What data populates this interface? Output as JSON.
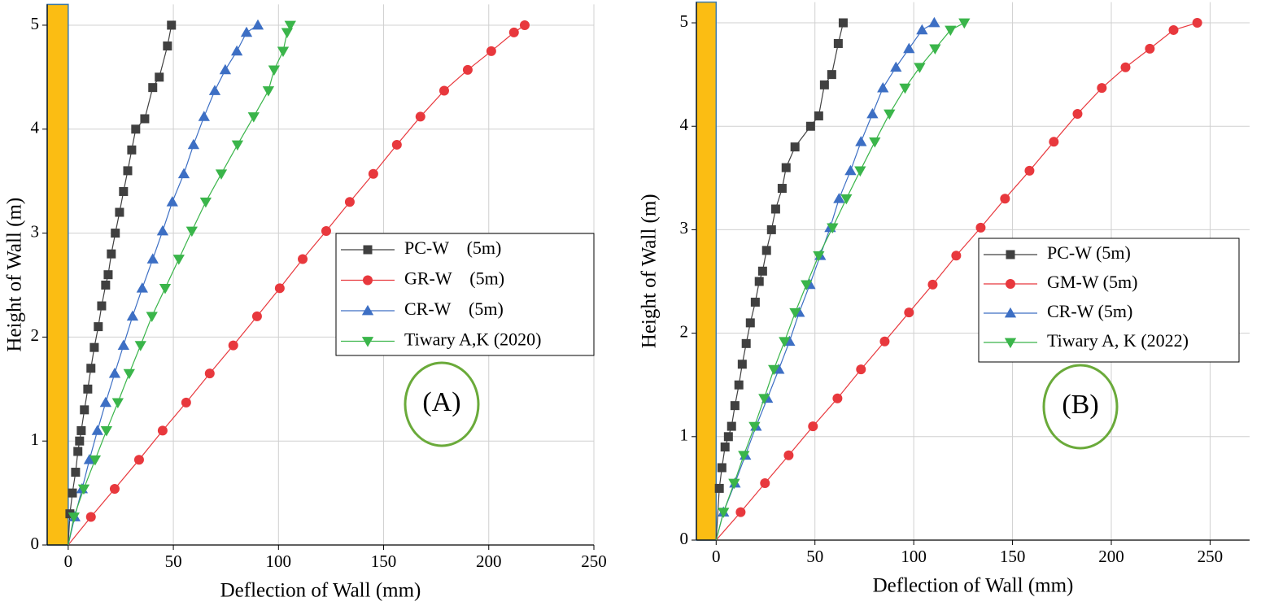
{
  "chart_data": [
    {
      "type": "line",
      "xlabel": "Deflection of Wall (mm)",
      "ylabel": "Height of Wall (m)",
      "annotation": "(A)",
      "xlim": [
        -10,
        250
      ],
      "ylim": [
        0,
        5.2
      ],
      "xticks": [
        0,
        50,
        100,
        150,
        200,
        250
      ],
      "yticks": [
        0,
        1,
        2,
        3,
        4,
        5
      ],
      "grid": true,
      "legend": "right",
      "series": [
        {
          "name": "PC-W    (5m)",
          "color": "#404040",
          "marker": "square",
          "x": [
            0,
            0.8,
            2,
            3.5,
            4.6,
            5.4,
            6.2,
            7.7,
            9.3,
            10.8,
            12.4,
            14.3,
            15.9,
            17.8,
            19,
            20.5,
            22.4,
            24.4,
            26.3,
            28.3,
            30.2,
            32.1,
            36.4,
            40.2,
            43.3,
            47.2,
            49.1
          ],
          "values": [
            0,
            0.3,
            0.5,
            0.7,
            0.9,
            1.0,
            1.1,
            1.3,
            1.5,
            1.7,
            1.9,
            2.1,
            2.3,
            2.5,
            2.6,
            2.8,
            3.0,
            3.2,
            3.4,
            3.6,
            3.8,
            4.0,
            4.1,
            4.4,
            4.5,
            4.8,
            5.0
          ]
        },
        {
          "name": "GR-W    (5m)",
          "color": "#e8383d",
          "marker": "circle",
          "x": [
            0,
            10.8,
            22.1,
            33.7,
            44.9,
            56.1,
            67.3,
            78.5,
            89.8,
            100.6,
            111.5,
            122.7,
            133.9,
            145.1,
            156.3,
            167.5,
            178.8,
            190,
            201.2,
            212,
            217.1
          ],
          "values": [
            0,
            0.27,
            0.54,
            0.82,
            1.1,
            1.37,
            1.65,
            1.92,
            2.2,
            2.47,
            2.75,
            3.02,
            3.3,
            3.57,
            3.85,
            4.12,
            4.37,
            4.57,
            4.75,
            4.93,
            5.0
          ]
        },
        {
          "name": "CR-W    (5m)",
          "color": "#3d6fc4",
          "marker": "triangle-up",
          "x": [
            0,
            3.1,
            6.6,
            10.1,
            13.9,
            17.8,
            22.1,
            26.3,
            30.6,
            35.2,
            40.2,
            44.9,
            49.5,
            55,
            59.6,
            64.6,
            69.7,
            74.7,
            80.2,
            84.8,
            90.2
          ],
          "values": [
            0,
            0.27,
            0.54,
            0.82,
            1.1,
            1.37,
            1.65,
            1.92,
            2.2,
            2.47,
            2.75,
            3.02,
            3.3,
            3.57,
            3.85,
            4.12,
            4.37,
            4.57,
            4.75,
            4.93,
            5.0
          ]
        },
        {
          "name": "Tiwary A,K (2020)",
          "color": "#3ab54a",
          "marker": "triangle-down",
          "x": [
            0,
            2.7,
            7.4,
            12.8,
            18.2,
            23.6,
            29,
            34.4,
            39.8,
            46.1,
            52.6,
            58.8,
            65.4,
            72.8,
            80.5,
            88.2,
            95.2,
            97.9,
            102.2,
            104.1,
            105.6
          ],
          "values": [
            0,
            0.27,
            0.54,
            0.82,
            1.1,
            1.37,
            1.65,
            1.92,
            2.2,
            2.47,
            2.75,
            3.02,
            3.3,
            3.57,
            3.85,
            4.12,
            4.37,
            4.57,
            4.75,
            4.93,
            5.0
          ]
        }
      ]
    },
    {
      "type": "line",
      "xlabel": "Deflection of Wall (mm)",
      "ylabel": "Height of Wall (m)",
      "annotation": "(B)",
      "xlim": [
        -10,
        270
      ],
      "ylim": [
        0,
        5.2
      ],
      "xticks": [
        0,
        50,
        100,
        150,
        200,
        250
      ],
      "yticks": [
        0,
        1,
        2,
        3,
        4,
        5
      ],
      "grid": true,
      "legend": "right",
      "series": [
        {
          "name": "PC-W (5m)",
          "color": "#404040",
          "marker": "square",
          "x": [
            0,
            1.6,
            2.9,
            4.5,
            6.2,
            7.8,
            9.5,
            11.5,
            13.2,
            15.2,
            17.3,
            19.8,
            21.8,
            23.5,
            25.5,
            28,
            30.1,
            33.4,
            35.4,
            39.9,
            47.8,
            51.9,
            54.8,
            58.5,
            61.8,
            64.3
          ],
          "values": [
            0,
            0.5,
            0.7,
            0.9,
            1.0,
            1.1,
            1.3,
            1.5,
            1.7,
            1.9,
            2.1,
            2.3,
            2.5,
            2.6,
            2.8,
            3.0,
            3.2,
            3.4,
            3.6,
            3.8,
            4.0,
            4.1,
            4.4,
            4.5,
            4.8,
            5.0
          ]
        },
        {
          "name": "GM-W (5m)",
          "color": "#e8383d",
          "marker": "circle",
          "x": [
            0,
            12.4,
            24.7,
            36.7,
            49,
            61.4,
            73.3,
            85.3,
            97.6,
            109.6,
            121.5,
            133.9,
            146.2,
            158.6,
            170.9,
            182.9,
            195.2,
            207.2,
            219.5,
            231.5,
            243.5
          ],
          "values": [
            0,
            0.27,
            0.55,
            0.82,
            1.1,
            1.37,
            1.65,
            1.92,
            2.2,
            2.47,
            2.75,
            3.02,
            3.3,
            3.57,
            3.85,
            4.12,
            4.37,
            4.57,
            4.75,
            4.93,
            5.0
          ]
        },
        {
          "name": "CR-W (5m)",
          "color": "#3d6fc4",
          "marker": "triangle-up",
          "x": [
            0,
            3.7,
            9.5,
            14.8,
            20.2,
            25.9,
            31.7,
            37.1,
            42,
            47.4,
            52.7,
            57.7,
            62.2,
            68,
            73.3,
            79.1,
            84.4,
            91,
            97.6,
            104.2,
            110.4
          ],
          "values": [
            0,
            0.27,
            0.55,
            0.82,
            1.1,
            1.37,
            1.65,
            1.92,
            2.2,
            2.47,
            2.75,
            3.02,
            3.3,
            3.57,
            3.85,
            4.12,
            4.37,
            4.57,
            4.75,
            4.93,
            5.0
          ]
        },
        {
          "name": "Tiwary A, K (2022)",
          "color": "#3ab54a",
          "marker": "triangle-down",
          "x": [
            0,
            3.7,
            9.1,
            14,
            19.4,
            24.3,
            29.2,
            34.6,
            40,
            45.7,
            51.9,
            58.9,
            65.9,
            72.9,
            80.3,
            87.7,
            95.6,
            103,
            110.8,
            118.6,
            125.6
          ],
          "values": [
            0,
            0.27,
            0.55,
            0.82,
            1.1,
            1.37,
            1.65,
            1.92,
            2.2,
            2.47,
            2.75,
            3.02,
            3.3,
            3.57,
            3.85,
            4.12,
            4.37,
            4.57,
            4.75,
            4.93,
            5.0
          ]
        }
      ]
    }
  ]
}
